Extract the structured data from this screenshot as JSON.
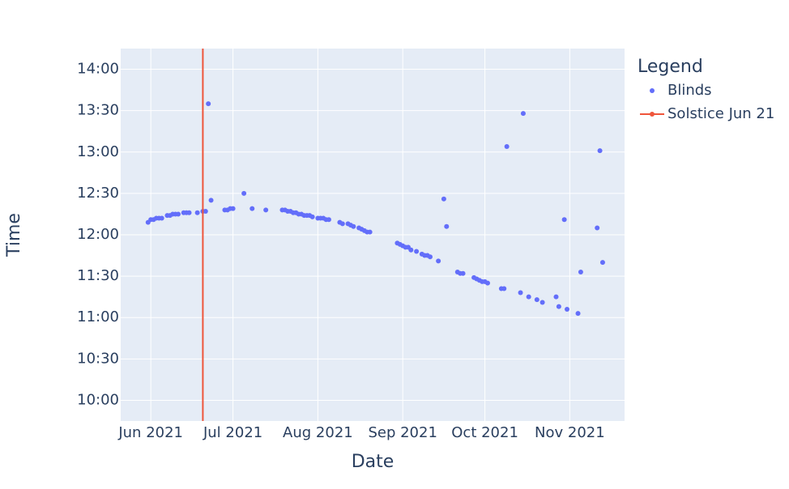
{
  "chart_data": {
    "type": "scatter",
    "x_label": "Date",
    "y_label": "Time",
    "legend_title": "Legend",
    "legend_position": "right",
    "xlim": [
      141,
      325
    ],
    "xticks": [
      {
        "value": 152,
        "label": "Jun 2021"
      },
      {
        "value": 182,
        "label": "Jul 2021"
      },
      {
        "value": 213,
        "label": "Aug 2021"
      },
      {
        "value": 244,
        "label": "Sep 2021"
      },
      {
        "value": 274,
        "label": "Oct 2021"
      },
      {
        "value": 305,
        "label": "Nov 2021"
      }
    ],
    "ylim": [
      585,
      855
    ],
    "yticks": [
      {
        "value": 600,
        "label": "10:00"
      },
      {
        "value": 630,
        "label": "10:30"
      },
      {
        "value": 660,
        "label": "11:00"
      },
      {
        "value": 690,
        "label": "11:30"
      },
      {
        "value": 720,
        "label": "12:00"
      },
      {
        "value": 750,
        "label": "12:30"
      },
      {
        "value": 780,
        "label": "13:00"
      },
      {
        "value": 810,
        "label": "13:30"
      },
      {
        "value": 840,
        "label": "14:00"
      }
    ],
    "grid": true,
    "series": [
      {
        "name": "Blinds",
        "color": "#636efa",
        "x": [
          151,
          152,
          153,
          154,
          155,
          156,
          158,
          159,
          160,
          161,
          162,
          164,
          165,
          166,
          169,
          171,
          172,
          173,
          174,
          179,
          180,
          181,
          182,
          186,
          189,
          194,
          200,
          201,
          202,
          203,
          204,
          205,
          206,
          207,
          208,
          209,
          210,
          211,
          213,
          214,
          215,
          216,
          217,
          221,
          222,
          224,
          225,
          226,
          228,
          229,
          230,
          231,
          232,
          242,
          243,
          244,
          245,
          246,
          247,
          249,
          251,
          252,
          253,
          254,
          257,
          259,
          260,
          264,
          265,
          266,
          270,
          271,
          272,
          273,
          274,
          275,
          280,
          281,
          282,
          287,
          288,
          290,
          293,
          295,
          300,
          301,
          303,
          304,
          308,
          309,
          315,
          316,
          317
        ],
        "values": [
          729,
          731,
          731,
          732,
          732,
          732,
          734,
          734,
          735,
          735,
          735,
          736,
          736,
          736,
          736,
          737,
          737,
          815,
          745,
          738,
          738,
          739,
          739,
          750,
          739,
          738,
          738,
          738,
          737,
          737,
          736,
          736,
          735,
          735,
          734,
          734,
          734,
          733,
          732,
          732,
          732,
          731,
          731,
          729,
          728,
          728,
          727,
          726,
          725,
          724,
          723,
          722,
          722,
          714,
          713,
          712,
          711,
          711,
          709,
          708,
          706,
          705,
          705,
          704,
          701,
          746,
          726,
          693,
          692,
          692,
          689,
          688,
          687,
          686,
          686,
          685,
          681,
          681,
          784,
          678,
          808,
          675,
          673,
          671,
          675,
          668,
          731,
          666,
          663,
          693,
          725,
          781,
          700
        ]
      },
      {
        "name": "Solstice Jun 21",
        "color": "#ef553b",
        "x": 171
      }
    ]
  }
}
